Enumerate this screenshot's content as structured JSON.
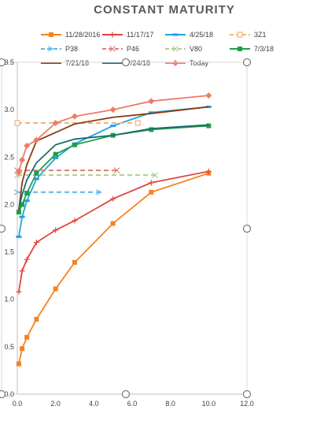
{
  "chart_data": {
    "type": "line",
    "title": "CONSTANT MATURITY",
    "xlabel": "",
    "ylabel": "",
    "xlim": [
      0,
      12
    ],
    "ylim": [
      0,
      3.5
    ],
    "x_ticks": [
      "0.0",
      "2.0",
      "4.0",
      "6.0",
      "8.0",
      "10.0",
      "12.0"
    ],
    "y_ticks": [
      "0.0",
      "0.5",
      "1.0",
      "1.5",
      "2.0",
      "2.5",
      "3.0",
      "3.5"
    ],
    "x_tick_values": [
      0,
      2,
      4,
      6,
      8,
      10,
      12
    ],
    "y_tick_values": [
      0,
      0.5,
      1,
      1.5,
      2,
      2.5,
      3,
      3.5
    ],
    "grid": false,
    "legend_position": "top",
    "series": [
      {
        "name": "11/28/2016",
        "color": "#f58220",
        "marker": "square",
        "dash": "solid",
        "x": [
          0.08,
          0.25,
          0.5,
          1,
          2,
          3,
          5,
          7,
          10
        ],
        "y": [
          0.32,
          0.48,
          0.6,
          0.79,
          1.11,
          1.39,
          1.8,
          2.13,
          2.33
        ]
      },
      {
        "name": "11/17/17",
        "color": "#e0453c",
        "marker": "plus",
        "dash": "solid",
        "x": [
          0.08,
          0.25,
          0.5,
          1,
          2,
          3,
          5,
          7,
          10
        ],
        "y": [
          1.08,
          1.3,
          1.42,
          1.6,
          1.73,
          1.83,
          2.06,
          2.23,
          2.35
        ]
      },
      {
        "name": "4/25/18",
        "color": "#1fa3e0",
        "marker": "dash",
        "dash": "solid",
        "x": [
          0.08,
          0.25,
          0.5,
          1,
          2,
          3,
          5,
          7,
          10
        ],
        "y": [
          1.66,
          1.87,
          2.04,
          2.27,
          2.49,
          2.64,
          2.83,
          2.97,
          3.03
        ]
      },
      {
        "name": "3Z1",
        "color": "#f4b183",
        "marker": "square-open",
        "dash": "dashed",
        "x": [
          0,
          6.3
        ],
        "y": [
          2.86,
          2.86
        ]
      },
      {
        "name": "P38",
        "color": "#5fb6e8",
        "marker": "arrow",
        "dash": "dashed",
        "x": [
          0,
          4.3
        ],
        "y": [
          2.13,
          2.13
        ]
      },
      {
        "name": "P46",
        "color": "#e07b7b",
        "marker": "cross",
        "dash": "dashed",
        "x": [
          0,
          5.2
        ],
        "y": [
          2.36,
          2.36
        ]
      },
      {
        "name": "V80",
        "color": "#a9d18e",
        "marker": "cross",
        "dash": "dashed",
        "x": [
          0,
          7.2
        ],
        "y": [
          2.31,
          2.31
        ]
      },
      {
        "name": "7/3/18",
        "color": "#1f9e4a",
        "marker": "square",
        "dash": "solid",
        "x": [
          0.08,
          0.25,
          0.5,
          1,
          2,
          3,
          5,
          7,
          10
        ],
        "y": [
          1.92,
          2.0,
          2.12,
          2.33,
          2.53,
          2.63,
          2.73,
          2.79,
          2.83
        ]
      },
      {
        "name": "7/21/18",
        "color": "#8b3a0f",
        "marker": "none",
        "dash": "solid",
        "x": [
          0.08,
          0.25,
          0.5,
          1,
          2,
          3,
          5,
          7,
          10
        ],
        "y": [
          1.94,
          2.23,
          2.42,
          2.67,
          2.76,
          2.85,
          2.92,
          2.96,
          3.03
        ]
      },
      {
        "name": "?/24/18",
        "color": "#1b6b6b",
        "marker": "none",
        "dash": "solid",
        "x": [
          0.08,
          0.25,
          0.5,
          1,
          2,
          3,
          5,
          7,
          10
        ],
        "y": [
          1.96,
          2.1,
          2.26,
          2.44,
          2.63,
          2.69,
          2.73,
          2.8,
          2.84
        ]
      },
      {
        "name": "Today",
        "color": "#f07a65",
        "marker": "diamond",
        "dash": "solid",
        "x": [
          0.08,
          0.25,
          0.5,
          1,
          2,
          3,
          5,
          7,
          10
        ],
        "y": [
          2.34,
          2.47,
          2.62,
          2.68,
          2.86,
          2.93,
          3.0,
          3.09,
          3.15
        ]
      }
    ]
  }
}
